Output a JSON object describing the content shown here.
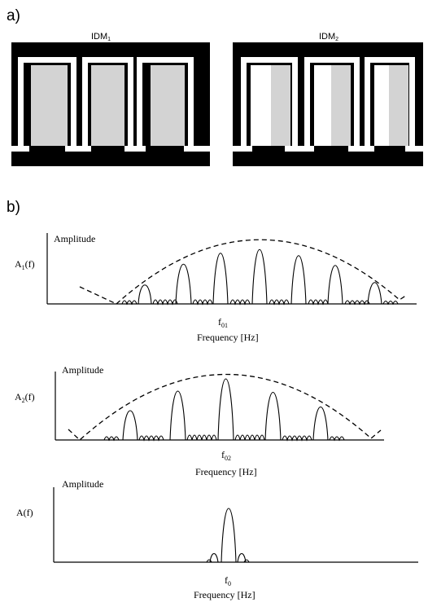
{
  "panel_a": {
    "label": "a)",
    "idm1": {
      "base": "IDM",
      "sub": "1"
    },
    "idm2": {
      "base": "IDM",
      "sub": "2"
    }
  },
  "panel_b": {
    "label": "b)",
    "plots": [
      {
        "ylabel_base": "A",
        "ylabel_sub": "1",
        "ylabel_rest": "(f)",
        "amplitude": "Amplitude",
        "center_base": "f",
        "center_sub": "01",
        "xlabel": "Frequency [Hz]"
      },
      {
        "ylabel_base": "A",
        "ylabel_sub": "2",
        "ylabel_rest": "(f)",
        "amplitude": "Amplitude",
        "center_base": "f",
        "center_sub": "02",
        "xlabel": "Frequency [Hz]"
      },
      {
        "ylabel_base": "A(f)",
        "ylabel_sub": "",
        "ylabel_rest": "",
        "amplitude": "Amplitude",
        "center_base": "f",
        "center_sub": "0",
        "xlabel": "Frequency [Hz]"
      }
    ]
  },
  "colors": {
    "electrode": "#000000",
    "fill": "#d3d3d3",
    "background": "#ffffff"
  }
}
